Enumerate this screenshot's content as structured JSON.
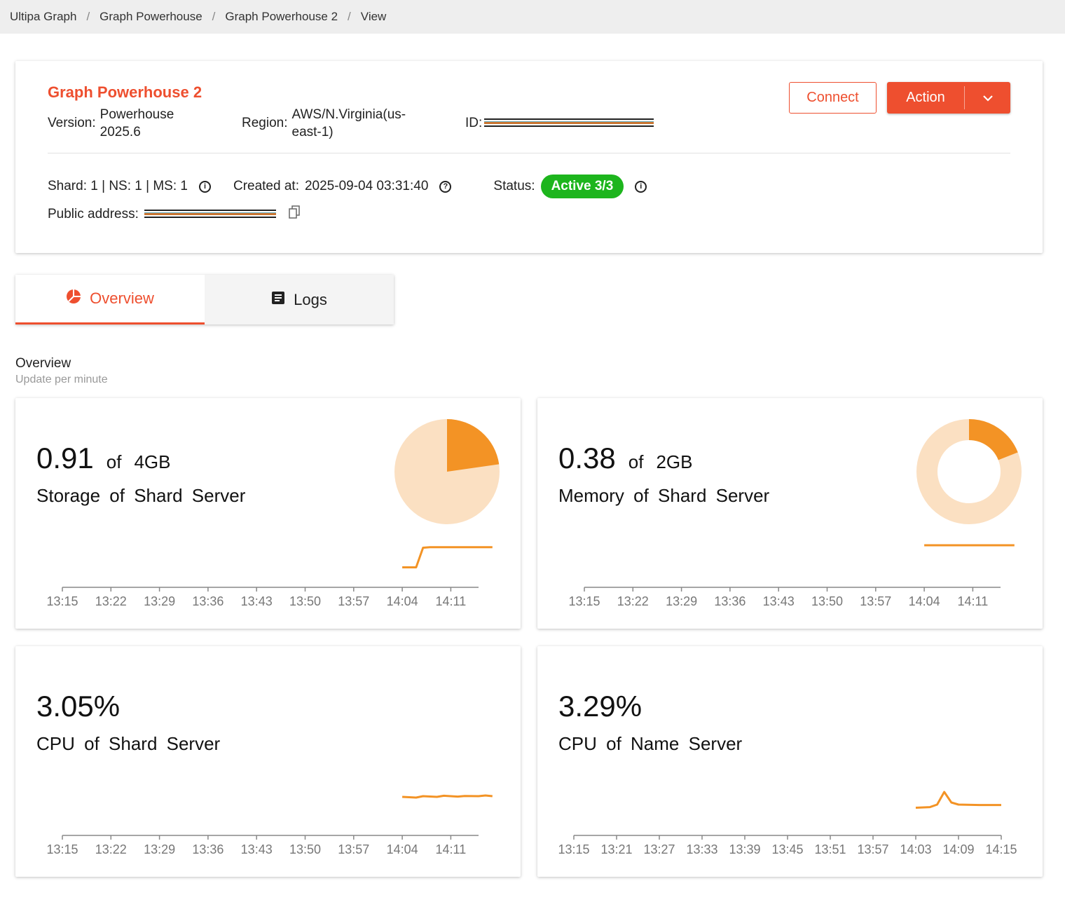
{
  "breadcrumb": [
    "Ultipa Graph",
    "Graph Powerhouse",
    "Graph Powerhouse 2",
    "View"
  ],
  "instance": {
    "title": "Graph Powerhouse 2",
    "version_label": "Version:",
    "version_line1": "Powerhouse",
    "version_line2": "2025.6",
    "region_label": "Region:",
    "region_line1": "AWS/N.Virginia(us-",
    "region_line2": "east-1)",
    "id_label": "ID:",
    "connect": "Connect",
    "action": "Action",
    "nodes": "Shard: 1 | NS: 1 | MS: 1",
    "created_label": "Created at:",
    "created_value": "2025-09-04 03:31:40",
    "status_label": "Status:",
    "status_value": "Active 3/3",
    "public_address_label": "Public address:"
  },
  "tabs": [
    {
      "label": "Overview",
      "icon": "pie-chart-icon"
    },
    {
      "label": "Logs",
      "icon": "document-icon"
    }
  ],
  "section": {
    "title": "Overview",
    "subtitle": "Update per minute"
  },
  "colors": {
    "accent": "#ee4f2f",
    "success": "#1db51d",
    "series": "#f39325",
    "series_light": "#fbe0c2"
  },
  "chart_data": [
    {
      "type": "line",
      "name": "storage",
      "value": "0.91",
      "of": "of",
      "total": "4GB",
      "caption": "Storage of Shard Server",
      "pie": {
        "kind": "pie",
        "used": 0.91,
        "total": 4
      },
      "x_ticks": [
        "13:15",
        "13:22",
        "13:29",
        "13:36",
        "13:43",
        "13:50",
        "13:57",
        "14:04",
        "14:11"
      ],
      "x_range_min": [
        0,
        62
      ],
      "series": [
        [
          49,
          0.1
        ],
        [
          51,
          0.1
        ],
        [
          52,
          0.9
        ],
        [
          53,
          0.92
        ],
        [
          62,
          0.92
        ]
      ]
    },
    {
      "type": "line",
      "name": "memory",
      "value": "0.38",
      "of": "of",
      "total": "2GB",
      "caption": "Memory of Shard Server",
      "pie": {
        "kind": "donut",
        "used": 0.38,
        "total": 2
      },
      "x_ticks": [
        "13:15",
        "13:22",
        "13:29",
        "13:36",
        "13:43",
        "13:50",
        "13:57",
        "14:04",
        "14:11"
      ],
      "x_range_min": [
        0,
        62
      ],
      "series": [
        [
          49,
          1
        ],
        [
          62,
          1
        ]
      ]
    },
    {
      "type": "line",
      "name": "cpu-shard",
      "value": "3.05%",
      "caption": "CPU of Shard Server",
      "x_ticks": [
        "13:15",
        "13:22",
        "13:29",
        "13:36",
        "13:43",
        "13:50",
        "13:57",
        "14:04",
        "14:11"
      ],
      "x_range_min": [
        0,
        62
      ],
      "series": [
        [
          49,
          0.5
        ],
        [
          51,
          0.45
        ],
        [
          52,
          0.55
        ],
        [
          54,
          0.5
        ],
        [
          55,
          0.58
        ],
        [
          57,
          0.52
        ],
        [
          58,
          0.56
        ],
        [
          60,
          0.55
        ],
        [
          61,
          0.6
        ],
        [
          62,
          0.55
        ]
      ]
    },
    {
      "type": "line",
      "name": "cpu-name",
      "value": "3.29%",
      "caption": "CPU of Name Server",
      "x_ticks": [
        "13:15",
        "13:21",
        "13:27",
        "13:33",
        "13:39",
        "13:45",
        "13:51",
        "13:57",
        "14:03",
        "14:09",
        "14:15"
      ],
      "x_range_min": [
        0,
        60
      ],
      "series": [
        [
          48,
          0.15
        ],
        [
          50,
          0.18
        ],
        [
          51,
          0.3
        ],
        [
          52,
          0.9
        ],
        [
          53,
          0.4
        ],
        [
          54,
          0.3
        ],
        [
          57,
          0.28
        ],
        [
          60,
          0.28
        ]
      ]
    }
  ]
}
